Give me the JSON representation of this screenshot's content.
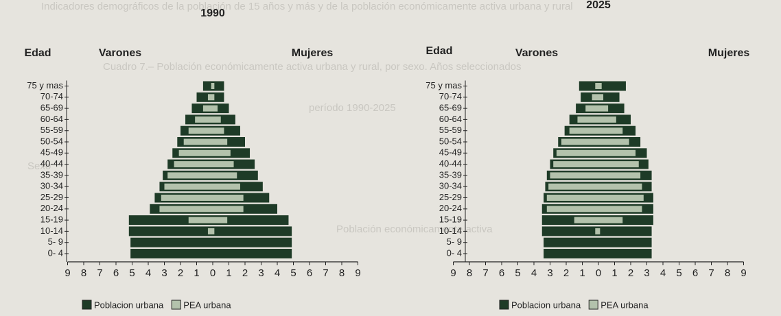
{
  "background_text": [
    "Indicadores demográficos de la población de 15 años y más y de la población económicamente activa urbana y rural",
    "Cuadro 7.– Población económicamente activa urbana y rural, por sexo. Años seleccionados",
    "período 1990-2025",
    "Sexo",
    "Población económicamente activa"
  ],
  "chart_data": [
    {
      "type": "pyramid",
      "title": "1990",
      "y_label": "Edad",
      "left_label": "Varones",
      "right_label": "Mujeres",
      "categories": [
        "0- 4",
        "5- 9",
        "10-14",
        "15-19",
        "20-24",
        "25-29",
        "30-34",
        "35-39",
        "40-44",
        "45-49",
        "50-54",
        "55-59",
        "60-64",
        "65-69",
        "70-74",
        "75 y mas"
      ],
      "xlim": [
        -9,
        9
      ],
      "xticks": [
        {
          "value": -9,
          "label": "9"
        },
        {
          "value": -8,
          "label": "8"
        },
        {
          "value": -7,
          "label": "7"
        },
        {
          "value": -6,
          "label": "6"
        },
        {
          "value": -5,
          "label": "5"
        },
        {
          "value": -4,
          "label": "4"
        },
        {
          "value": -3,
          "label": "3"
        },
        {
          "value": -2,
          "label": "2"
        },
        {
          "value": -1,
          "label": "1"
        },
        0,
        1,
        2,
        3,
        4,
        5,
        6,
        7,
        8,
        9
      ],
      "series": [
        {
          "name": "Poblacion urbana",
          "color": "#1e3b27",
          "side": "left",
          "values": [
            -5.1,
            -5.1,
            -5.2,
            -5.2,
            -3.9,
            -3.6,
            -3.3,
            -3.1,
            -2.8,
            -2.5,
            -2.2,
            -2.0,
            -1.7,
            -1.3,
            -1.0,
            -0.6
          ]
        },
        {
          "name": "PEA urbana",
          "color": "#b3c2ac",
          "side": "left",
          "values": [
            0,
            0,
            -0.3,
            -1.5,
            -3.3,
            -3.2,
            -3.0,
            -2.8,
            -2.4,
            -2.1,
            -1.8,
            -1.5,
            -1.1,
            -0.6,
            -0.3,
            -0.1
          ]
        },
        {
          "name": "Poblacion urbana",
          "color": "#1e3b27",
          "side": "right",
          "values": [
            4.9,
            4.9,
            4.9,
            4.7,
            4.0,
            3.5,
            3.1,
            2.8,
            2.6,
            2.3,
            2.0,
            1.7,
            1.4,
            1.0,
            0.7,
            0.7
          ]
        },
        {
          "name": "PEA urbana",
          "color": "#b3c2ac",
          "side": "right",
          "values": [
            0,
            0,
            0.1,
            0.9,
            1.9,
            1.9,
            1.7,
            1.5,
            1.3,
            1.1,
            0.9,
            0.7,
            0.5,
            0.3,
            0.1,
            0.1
          ]
        }
      ]
    },
    {
      "type": "pyramid",
      "title": "2025",
      "y_label": "Edad",
      "left_label": "Varones",
      "right_label": "Mujeres",
      "categories": [
        "0- 4",
        "5- 9",
        "10-14",
        "15-19",
        "20-24",
        "25-29",
        "30-34",
        "35-39",
        "40-44",
        "45-49",
        "50-54",
        "55-59",
        "60-64",
        "65-69",
        "70-74",
        "75 y mas"
      ],
      "xlim": [
        -9,
        9
      ],
      "xticks": [
        {
          "value": -9,
          "label": "9"
        },
        {
          "value": -8,
          "label": "8"
        },
        {
          "value": -7,
          "label": "7"
        },
        {
          "value": -6,
          "label": "6"
        },
        {
          "value": -5,
          "label": "5"
        },
        {
          "value": -4,
          "label": "4"
        },
        {
          "value": -3,
          "label": "3"
        },
        {
          "value": -2,
          "label": "2"
        },
        {
          "value": -1,
          "label": "1"
        },
        0,
        1,
        2,
        3,
        4,
        5,
        6,
        7,
        8,
        9
      ],
      "series": [
        {
          "name": "Poblacion urbana",
          "color": "#1e3b27",
          "side": "left",
          "values": [
            -3.4,
            -3.4,
            -3.5,
            -3.5,
            -3.5,
            -3.4,
            -3.3,
            -3.2,
            -3.0,
            -2.8,
            -2.5,
            -2.1,
            -1.8,
            -1.4,
            -1.1,
            -1.2
          ]
        },
        {
          "name": "PEA urbana",
          "color": "#b3c2ac",
          "side": "left",
          "values": [
            0,
            0,
            -0.2,
            -1.5,
            -3.2,
            -3.2,
            -3.1,
            -3.0,
            -2.8,
            -2.6,
            -2.3,
            -1.8,
            -1.3,
            -0.8,
            -0.4,
            -0.2
          ]
        },
        {
          "name": "Poblacion urbana",
          "color": "#1e3b27",
          "side": "right",
          "values": [
            3.3,
            3.3,
            3.3,
            3.4,
            3.4,
            3.4,
            3.3,
            3.3,
            3.1,
            3.0,
            2.6,
            2.3,
            2.0,
            1.6,
            1.3,
            1.7
          ]
        },
        {
          "name": "PEA urbana",
          "color": "#b3c2ac",
          "side": "right",
          "values": [
            0,
            0,
            0.1,
            1.5,
            2.7,
            2.8,
            2.7,
            2.6,
            2.5,
            2.3,
            1.9,
            1.5,
            1.1,
            0.6,
            0.3,
            0.2
          ]
        }
      ]
    }
  ]
}
